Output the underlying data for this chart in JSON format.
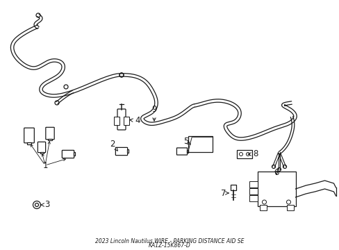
{
  "bg_color": "#ffffff",
  "line_color": "#1a1a1a",
  "fig_width": 4.89,
  "fig_height": 3.6,
  "dpi": 100,
  "title_line1": "2023 Lincoln Nautilus WIRE - PARKING DISTANCE AID SE",
  "title_line2": "KA1Z-15K867-D"
}
